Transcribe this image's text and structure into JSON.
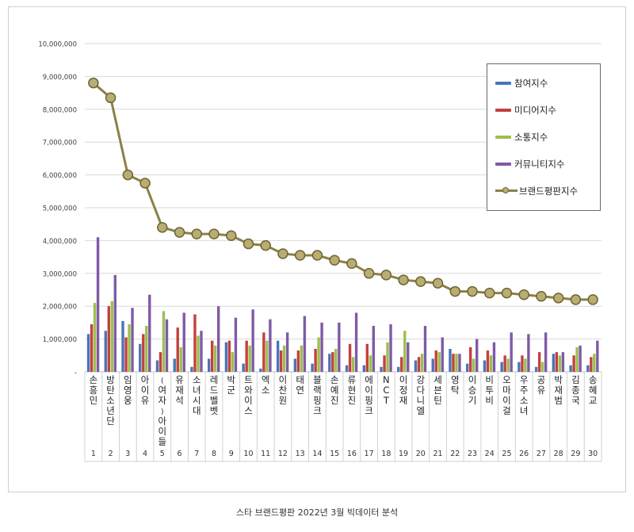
{
  "caption": "스타 브랜드평판 2022년 3월 빅데이터 분석",
  "chart_data": {
    "type": "bar",
    "title": "",
    "xlabel": "",
    "ylabel": "",
    "ylim": [
      0,
      10000000
    ],
    "yticks": [
      "-",
      "1,000,000",
      "2,000,000",
      "3,000,000",
      "4,000,000",
      "5,000,000",
      "6,000,000",
      "7,000,000",
      "8,000,000",
      "9,000,000",
      "10,000,000"
    ],
    "grid": true,
    "legend_position": "top-right",
    "categories": [
      "손흥민",
      "방탄소년단",
      "임영웅",
      "아이유",
      "(여자)아이들",
      "유재석",
      "소녀시대",
      "레드벨벳",
      "박군",
      "트와이스",
      "엑소",
      "이찬원",
      "태연",
      "블랙핑크",
      "손예진",
      "류현진",
      "에이핑크",
      "NCT",
      "이정재",
      "강다니엘",
      "세븐틴",
      "영탁",
      "이승기",
      "비투비",
      "오마이걸",
      "우주소녀",
      "공유",
      "박재범",
      "김종국",
      "송혜교"
    ],
    "ranks": [
      "1",
      "2",
      "3",
      "4",
      "5",
      "6",
      "7",
      "8",
      "9",
      "10",
      "11",
      "12",
      "13",
      "14",
      "15",
      "16",
      "17",
      "18",
      "19",
      "20",
      "21",
      "22",
      "23",
      "24",
      "25",
      "26",
      "27",
      "28",
      "29",
      "30"
    ],
    "series": [
      {
        "name": "참여지수",
        "kind": "bar",
        "color": "#4a74b8",
        "values": [
          1150000,
          1250000,
          1550000,
          850000,
          350000,
          400000,
          150000,
          400000,
          900000,
          250000,
          100000,
          950000,
          400000,
          250000,
          550000,
          200000,
          200000,
          150000,
          150000,
          350000,
          400000,
          700000,
          250000,
          350000,
          300000,
          300000,
          150000,
          550000,
          200000,
          200000
        ]
      },
      {
        "name": "미디어지수",
        "kind": "bar",
        "color": "#c4403c",
        "values": [
          1450000,
          2000000,
          1050000,
          1150000,
          600000,
          1350000,
          1750000,
          950000,
          950000,
          950000,
          1200000,
          650000,
          650000,
          700000,
          600000,
          850000,
          850000,
          500000,
          450000,
          450000,
          650000,
          550000,
          750000,
          650000,
          500000,
          500000,
          600000,
          600000,
          500000,
          450000
        ]
      },
      {
        "name": "소통지수",
        "kind": "bar",
        "color": "#9bc04e",
        "values": [
          2100000,
          2150000,
          1450000,
          1400000,
          1850000,
          750000,
          1100000,
          800000,
          600000,
          800000,
          950000,
          800000,
          800000,
          1050000,
          700000,
          450000,
          500000,
          900000,
          1250000,
          550000,
          600000,
          550000,
          400000,
          500000,
          400000,
          400000,
          300000,
          500000,
          750000,
          550000
        ]
      },
      {
        "name": "커뮤니티지수",
        "kind": "bar",
        "color": "#7f5aa6",
        "values": [
          4100000,
          2950000,
          1950000,
          2350000,
          1600000,
          1800000,
          1250000,
          2000000,
          1650000,
          1900000,
          1600000,
          1200000,
          1700000,
          1500000,
          1500000,
          1800000,
          1400000,
          1450000,
          900000,
          1400000,
          1050000,
          550000,
          1000000,
          900000,
          1200000,
          1150000,
          1200000,
          600000,
          800000,
          950000
        ]
      },
      {
        "name": "브랜드평판지수",
        "kind": "line",
        "color": "#8b8046",
        "values": [
          8800000,
          8350000,
          6000000,
          5750000,
          4400000,
          4250000,
          4200000,
          4200000,
          4150000,
          3900000,
          3850000,
          3600000,
          3550000,
          3550000,
          3400000,
          3300000,
          3000000,
          2950000,
          2800000,
          2750000,
          2700000,
          2450000,
          2450000,
          2400000,
          2400000,
          2350000,
          2300000,
          2250000,
          2200000,
          2200000
        ]
      }
    ]
  }
}
